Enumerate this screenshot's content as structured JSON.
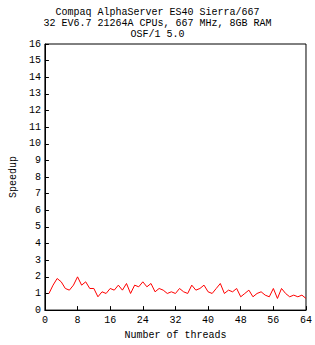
{
  "chart_data": {
    "type": "line",
    "title": [
      "Compaq AlphaServer ES40 Sierra/667",
      "32 EV6.7 21264A CPUs, 667 MHz, 8GB RAM",
      "OSF/1 5.0"
    ],
    "x_label": "Number of threads",
    "y_label": "Speedup",
    "x": [
      1,
      2,
      3,
      4,
      5,
      6,
      7,
      8,
      9,
      10,
      11,
      12,
      13,
      14,
      15,
      16,
      17,
      18,
      19,
      20,
      21,
      22,
      23,
      24,
      25,
      26,
      27,
      28,
      29,
      30,
      31,
      32,
      33,
      34,
      35,
      36,
      37,
      38,
      39,
      40,
      41,
      42,
      43,
      44,
      45,
      46,
      47,
      48,
      49,
      50,
      51,
      52,
      53,
      54,
      55,
      56,
      57,
      58,
      59,
      60,
      61,
      62,
      63,
      64
    ],
    "values": [
      1.0,
      1.5,
      1.9,
      1.7,
      1.3,
      1.2,
      1.5,
      2.0,
      1.5,
      1.7,
      1.3,
      1.3,
      0.8,
      1.1,
      1.0,
      1.3,
      1.2,
      1.5,
      1.2,
      1.6,
      1.0,
      1.5,
      1.4,
      1.7,
      1.4,
      1.6,
      1.1,
      1.3,
      1.2,
      1.0,
      1.1,
      1.0,
      1.3,
      1.1,
      1.0,
      1.5,
      1.2,
      1.3,
      1.5,
      1.1,
      1.0,
      1.3,
      1.6,
      1.0,
      1.2,
      1.1,
      1.3,
      0.8,
      1.0,
      1.2,
      0.8,
      1.0,
      1.1,
      0.9,
      0.8,
      1.3,
      0.7,
      1.3,
      1.0,
      0.8,
      0.9,
      0.8,
      0.9,
      0.7
    ],
    "color": "#ff0000",
    "xlim": [
      0,
      64
    ],
    "xticks": [
      0,
      8,
      16,
      24,
      32,
      40,
      48,
      56,
      64
    ],
    "ylim": [
      0,
      16
    ],
    "yticks": [
      0,
      1,
      2,
      3,
      4,
      5,
      6,
      7,
      8,
      9,
      10,
      11,
      12,
      13,
      14,
      15,
      16
    ],
    "grid": false
  }
}
